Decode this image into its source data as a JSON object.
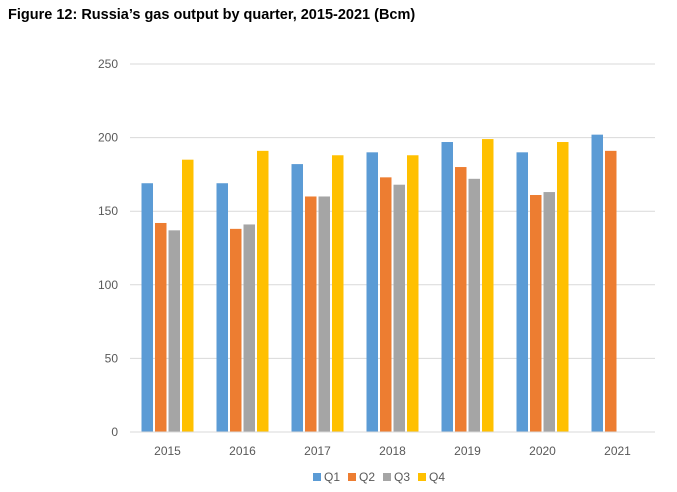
{
  "chart_data": {
    "type": "bar",
    "title": "Figure 12: Russia’s gas output by quarter, 2015-2021 (Bcm)",
    "xlabel": "",
    "ylabel": "",
    "categories": [
      "2015",
      "2016",
      "2017",
      "2018",
      "2019",
      "2020",
      "2021"
    ],
    "series": [
      {
        "name": "Q1",
        "color": "#5b9bd5",
        "values": [
          169,
          169,
          182,
          190,
          197,
          190,
          202
        ]
      },
      {
        "name": "Q2",
        "color": "#ed7d31",
        "values": [
          142,
          138,
          160,
          173,
          180,
          161,
          191
        ]
      },
      {
        "name": "Q3",
        "color": "#a5a5a5",
        "values": [
          137,
          141,
          160,
          168,
          172,
          163,
          null
        ]
      },
      {
        "name": "Q4",
        "color": "#ffc000",
        "values": [
          185,
          191,
          188,
          188,
          199,
          197,
          null
        ]
      }
    ],
    "ylim": [
      0,
      250
    ],
    "yticks": [
      0,
      50,
      100,
      150,
      200,
      250
    ],
    "grid": true,
    "legend": "bottom"
  }
}
